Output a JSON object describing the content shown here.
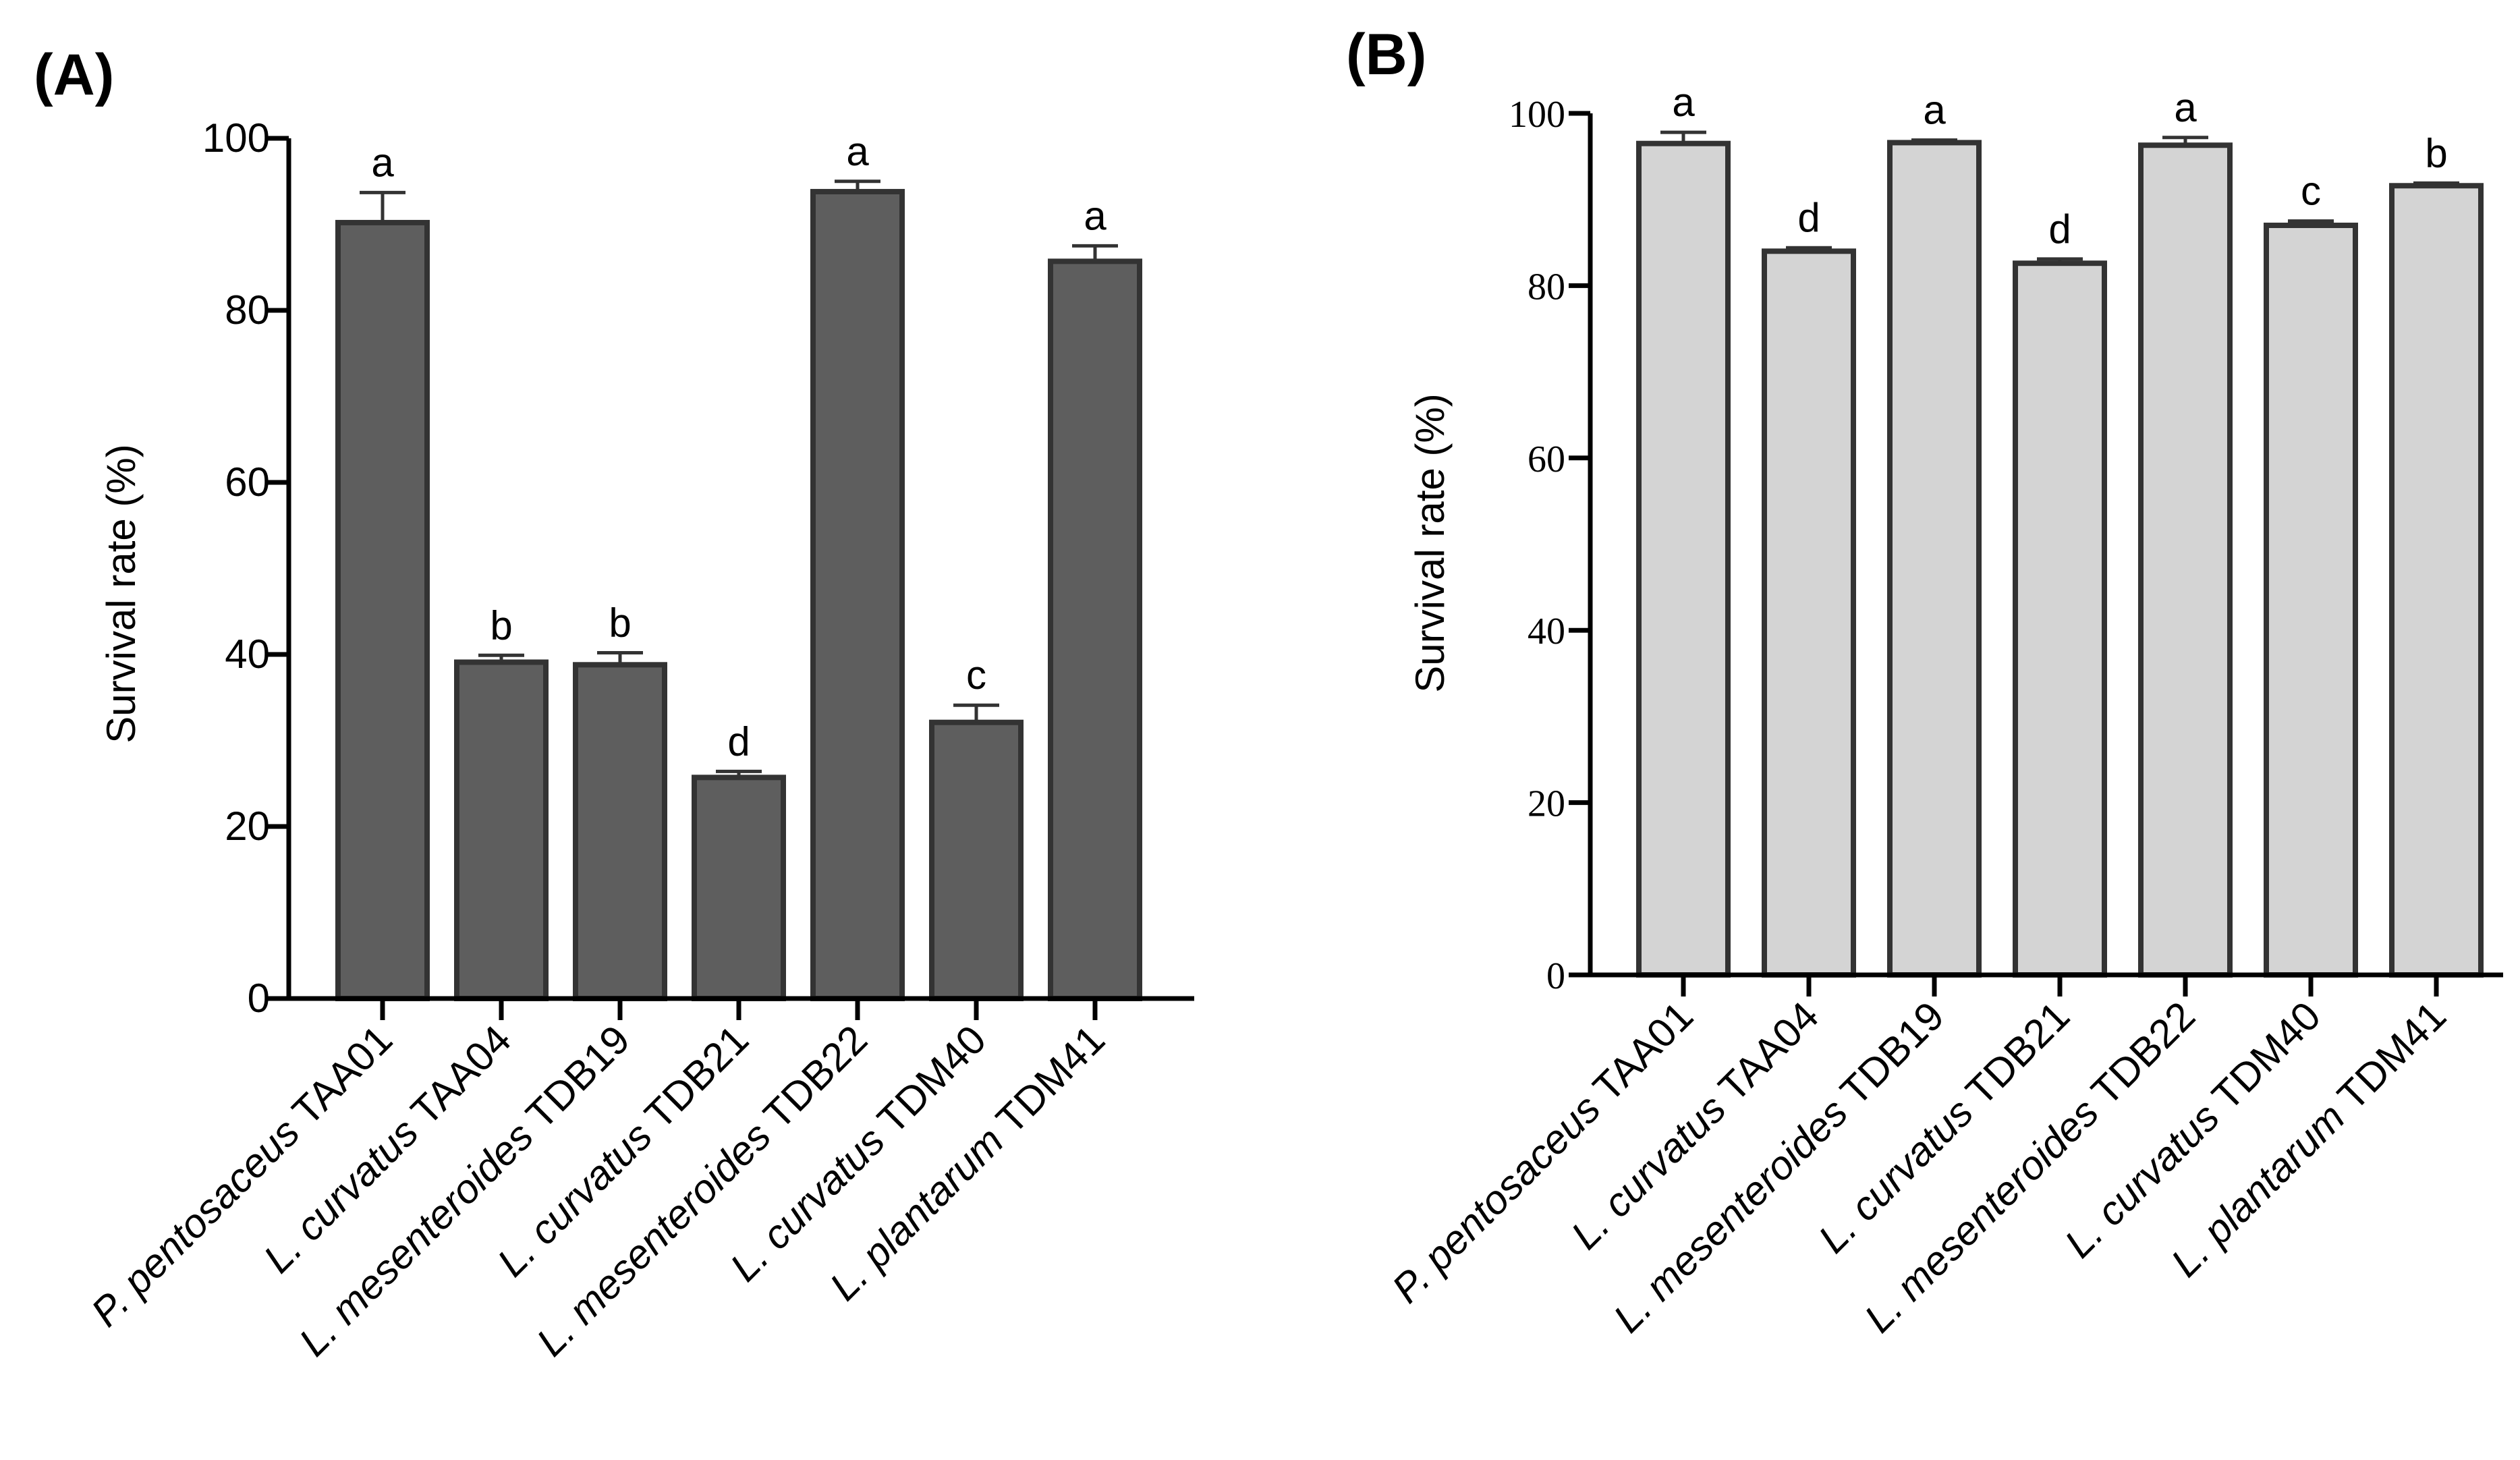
{
  "colors": {
    "axis": "#000000",
    "bar_stroke": "#333333",
    "panel_a_fill": "#5e5e5e",
    "panel_b_fill": "#d4d4d4"
  },
  "chart_data": [
    {
      "type": "bar",
      "panel_label": "(A)",
      "title": "",
      "xlabel": "",
      "ylabel": "Survival rate (%)",
      "ylim": [
        0,
        100
      ],
      "yticks": [
        0,
        20,
        40,
        60,
        80,
        100
      ],
      "categories": [
        {
          "italic": "P. pentosaceus",
          "strain": "TAA01"
        },
        {
          "italic": "L. curvatus",
          "strain": "TAA04"
        },
        {
          "italic": "L. mesenteroides",
          "strain": "TDB19"
        },
        {
          "italic": "L. curvatus",
          "strain": "TDB21"
        },
        {
          "italic": "L. mesenteroides",
          "strain": "TDB22"
        },
        {
          "italic": "L. curvatus",
          "strain": "TDM40"
        },
        {
          "italic": "L. plantarum",
          "strain": "TDM41"
        }
      ],
      "values": [
        90.2,
        39.1,
        38.8,
        25.7,
        93.8,
        32.1,
        85.7
      ],
      "errors": [
        3.5,
        0.8,
        1.4,
        0.7,
        1.2,
        2.0,
        1.8
      ],
      "significance": [
        "a",
        "b",
        "b",
        "d",
        "a",
        "c",
        "a"
      ]
    },
    {
      "type": "bar",
      "panel_label": "(B)",
      "title": "",
      "xlabel": "",
      "ylabel": "Survival rate (%)",
      "ylim": [
        0,
        100
      ],
      "yticks": [
        0,
        20,
        40,
        60,
        80,
        100
      ],
      "categories": [
        {
          "italic": "P. pentosaceus",
          "strain": "TAA01"
        },
        {
          "italic": "L. curvatus",
          "strain": "TAA04"
        },
        {
          "italic": "L. mesenteroides",
          "strain": "TDB19"
        },
        {
          "italic": "L. curvatus",
          "strain": "TDB21"
        },
        {
          "italic": "L. mesenteroides",
          "strain": "TDB22"
        },
        {
          "italic": "L. curvatus",
          "strain": "TDM40"
        },
        {
          "italic": "L. plantarum",
          "strain": "TDM41"
        }
      ],
      "values": [
        96.5,
        84.0,
        96.6,
        82.6,
        96.3,
        87.0,
        91.6
      ],
      "errors": [
        1.3,
        0.4,
        0.3,
        0.5,
        0.9,
        0.5,
        0.3
      ],
      "significance": [
        "a",
        "d",
        "a",
        "d",
        "a",
        "c",
        "b"
      ]
    }
  ]
}
